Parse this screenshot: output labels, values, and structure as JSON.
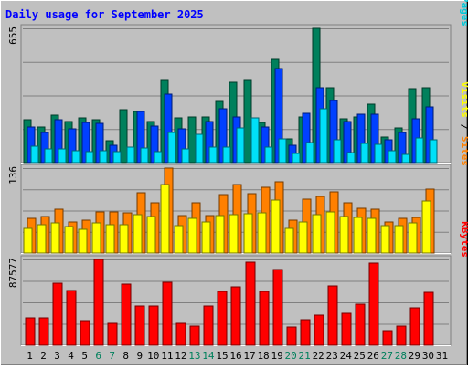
{
  "chart_data": [
    {
      "type": "bar",
      "title": "Daily usage for September 2025",
      "panel": "hits-files-pages",
      "ymax_label": "655",
      "axis_title_parts": [
        {
          "text": "Pages",
          "color": "#00c8d8"
        },
        {
          "text": " / ",
          "color": "#000000"
        },
        {
          "text": "Files",
          "color": "#0040ff"
        },
        {
          "text": " / ",
          "color": "#000000"
        },
        {
          "text": "Hits",
          "color": "#00805c"
        }
      ],
      "ylim": [
        0,
        655
      ],
      "categories": [
        "1",
        "2",
        "3",
        "4",
        "5",
        "6",
        "7",
        "8",
        "9",
        "10",
        "11",
        "12",
        "13",
        "14",
        "15",
        "16",
        "17",
        "18",
        "19",
        "20",
        "21",
        "22",
        "23",
        "24",
        "25",
        "26",
        "27",
        "28",
        "29",
        "30",
        "31"
      ],
      "weekend_days": [
        "6",
        "7",
        "13",
        "14",
        "20",
        "21",
        "27",
        "28"
      ],
      "series": [
        {
          "name": "Hits",
          "color": "#00805c",
          "values": [
            210,
            175,
            230,
            200,
            220,
            210,
            105,
            260,
            250,
            200,
            400,
            220,
            225,
            225,
            300,
            390,
            400,
            195,
            505,
            115,
            225,
            655,
            365,
            215,
            225,
            285,
            125,
            170,
            360,
            365,
            0
          ]
        },
        {
          "name": "Files",
          "color": "#0040ff",
          "values": [
            175,
            145,
            210,
            165,
            195,
            190,
            85,
            0,
            250,
            180,
            335,
            165,
            0,
            200,
            265,
            225,
            0,
            175,
            460,
            85,
            240,
            365,
            305,
            200,
            235,
            235,
            110,
            145,
            215,
            270,
            0
          ]
        },
        {
          "name": "Pages",
          "color": "#00e0f8",
          "values": [
            80,
            65,
            65,
            60,
            55,
            60,
            55,
            75,
            70,
            55,
            145,
            65,
            140,
            75,
            75,
            170,
            220,
            75,
            115,
            45,
            100,
            265,
            110,
            50,
            95,
            90,
            60,
            40,
            120,
            110,
            0
          ]
        }
      ]
    },
    {
      "type": "bar",
      "panel": "visits-sites",
      "ymax_label": "136",
      "axis_title_parts": [
        {
          "text": "Sites",
          "color": "#ff8000"
        },
        {
          "text": " / ",
          "color": "#000000"
        },
        {
          "text": "Visits",
          "color": "#ffff00"
        }
      ],
      "ylim": [
        0,
        136
      ],
      "categories": [
        "1",
        "2",
        "3",
        "4",
        "5",
        "6",
        "7",
        "8",
        "9",
        "10",
        "11",
        "12",
        "13",
        "14",
        "15",
        "16",
        "17",
        "18",
        "19",
        "20",
        "21",
        "22",
        "23",
        "24",
        "25",
        "26",
        "27",
        "28",
        "29",
        "30",
        "31"
      ],
      "series": [
        {
          "name": "Sites",
          "color": "#ff8000",
          "values": [
            56,
            58,
            70,
            50,
            52,
            66,
            66,
            65,
            97,
            81,
            136,
            60,
            81,
            60,
            94,
            110,
            95,
            105,
            114,
            53,
            87,
            91,
            98,
            80,
            72,
            70,
            50,
            55,
            57,
            102,
            0
          ]
        },
        {
          "name": "Visits",
          "color": "#ffff00",
          "values": [
            40,
            45,
            48,
            43,
            38,
            48,
            46,
            45,
            62,
            58,
            110,
            44,
            55,
            50,
            60,
            62,
            63,
            64,
            85,
            40,
            50,
            62,
            66,
            58,
            57,
            55,
            44,
            44,
            48,
            83,
            0
          ]
        }
      ]
    },
    {
      "type": "bar",
      "panel": "kbytes",
      "ymax_label": "87577",
      "axis_title_parts": [
        {
          "text": "KBytes",
          "color": "#ff0000"
        }
      ],
      "ylim": [
        0,
        87577
      ],
      "categories": [
        "1",
        "2",
        "3",
        "4",
        "5",
        "6",
        "7",
        "8",
        "9",
        "10",
        "11",
        "12",
        "13",
        "14",
        "15",
        "16",
        "17",
        "18",
        "19",
        "20",
        "21",
        "22",
        "23",
        "24",
        "25",
        "26",
        "27",
        "28",
        "29",
        "30",
        "31"
      ],
      "series": [
        {
          "name": "KBytes",
          "color": "#ff0000",
          "values": [
            28000,
            28000,
            63000,
            56000,
            25000,
            87577,
            22000,
            62000,
            40000,
            40000,
            64000,
            22000,
            20000,
            40000,
            55000,
            60000,
            85000,
            55000,
            77000,
            19000,
            26000,
            31000,
            61000,
            33000,
            42000,
            84000,
            15000,
            20000,
            38000,
            54000,
            0
          ]
        }
      ]
    }
  ],
  "x_day_labels": [
    "1",
    "2",
    "3",
    "4",
    "5",
    "6",
    "7",
    "8",
    "9",
    "10",
    "11",
    "12",
    "13",
    "14",
    "15",
    "16",
    "17",
    "18",
    "19",
    "20",
    "21",
    "22",
    "23",
    "24",
    "25",
    "26",
    "27",
    "28",
    "29",
    "30",
    "31"
  ],
  "colors": {
    "background": "#c0c0c0",
    "title": "#0000ff",
    "weekday_label": "#000000",
    "weekend_label": "#00805c",
    "grid": "#808080"
  }
}
